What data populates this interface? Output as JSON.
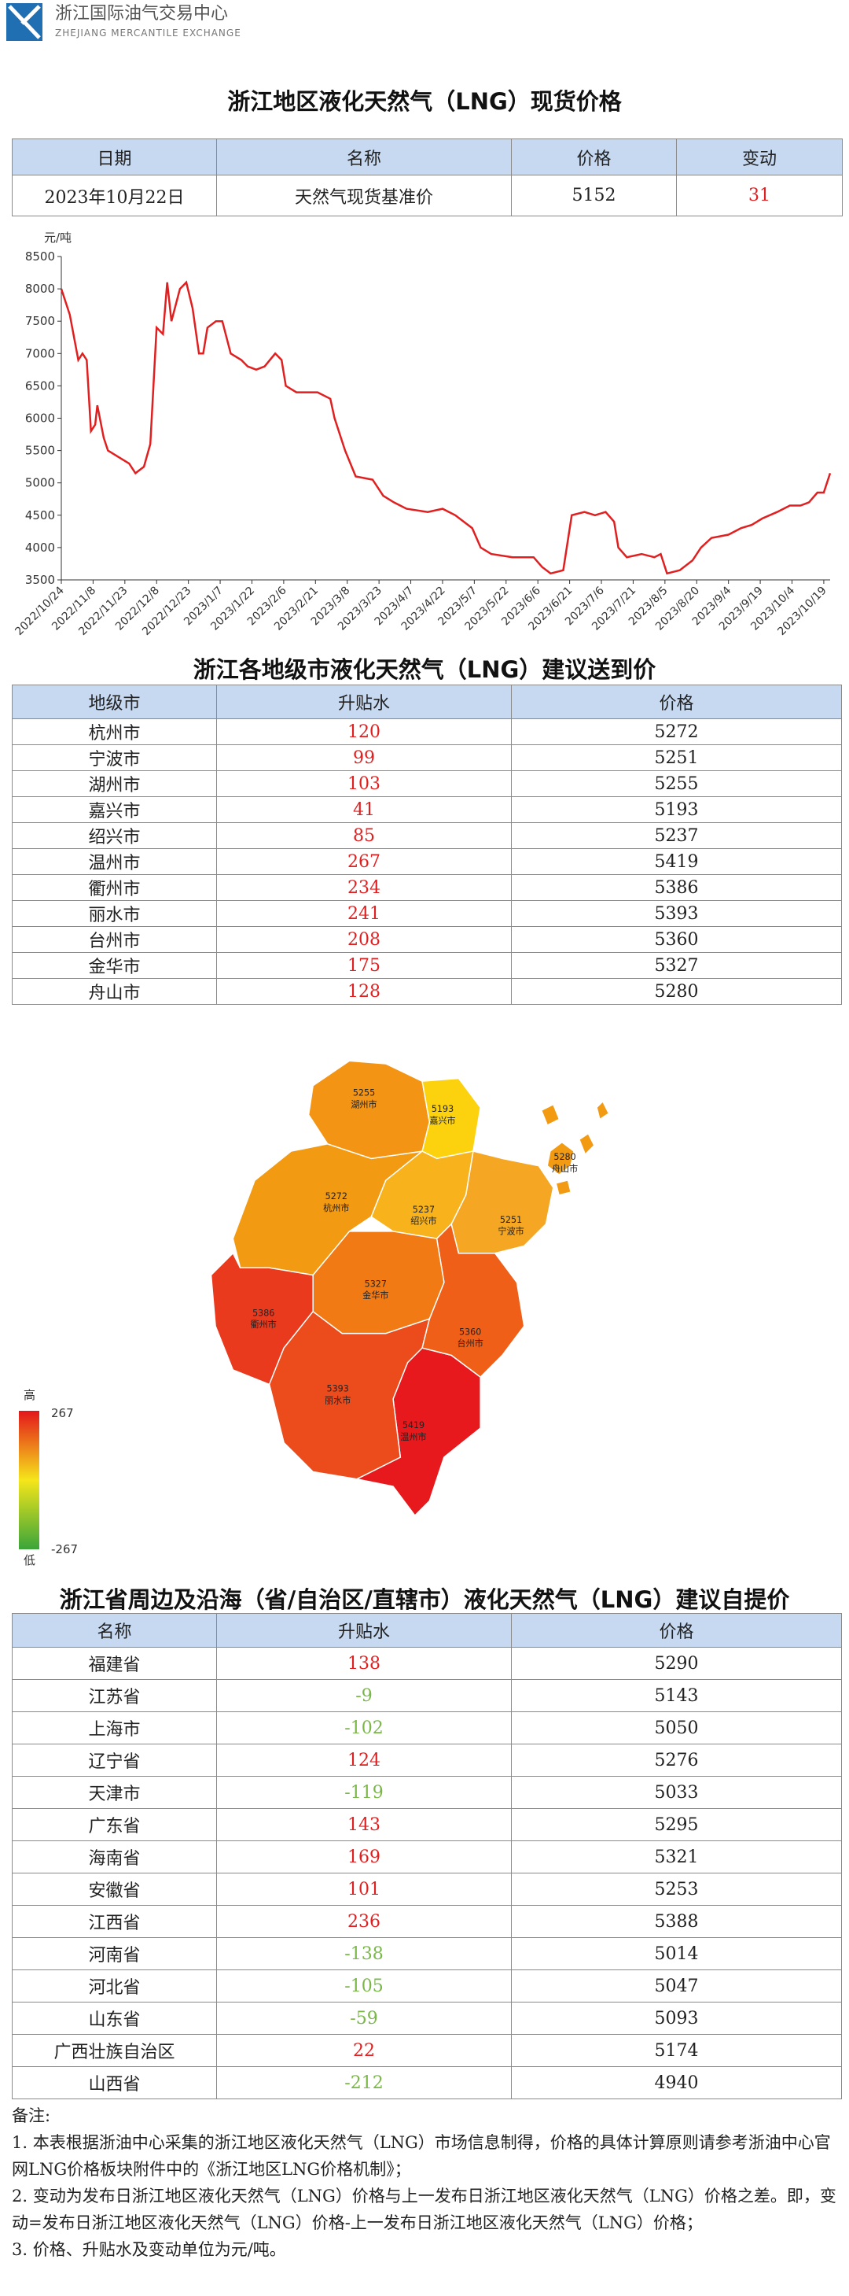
{
  "header": {
    "name": "浙江国际油气交易中心",
    "name_en": "ZHEJIANG MERCANTILE EXCHANGE"
  },
  "colors": {
    "positive": "#e02020",
    "negative": "#7ab648"
  },
  "spot": {
    "title": "浙江地区液化天然气（LNG）现货价格",
    "columns": [
      "日期",
      "名称",
      "价格",
      "变动"
    ],
    "rows": [
      [
        "2023年10月22日",
        "天然气现货基准价",
        5152,
        31
      ]
    ]
  },
  "chart_data": {
    "type": "line",
    "y_label": "元/吨",
    "x": [
      "2022/10/24",
      "2022/10/28",
      "2022/11/1",
      "2022/11/3",
      "2022/11/5",
      "2022/11/7",
      "2022/11/9",
      "2022/11/10",
      "2022/11/13",
      "2022/11/15",
      "2022/11/20",
      "2022/11/25",
      "2022/11/28",
      "2022/12/2",
      "2022/12/5",
      "2022/12/8",
      "2022/12/11",
      "2022/12/13",
      "2022/12/15",
      "2022/12/19",
      "2022/12/22",
      "2022/12/25",
      "2022/12/28",
      "2022/12/30",
      "2023/1/1",
      "2023/1/5",
      "2023/1/8",
      "2023/1/12",
      "2023/1/17",
      "2023/1/20",
      "2023/1/24",
      "2023/1/28",
      "2023/2/2",
      "2023/2/5",
      "2023/2/7",
      "2023/2/12",
      "2023/2/22",
      "2023/2/28",
      "2023/3/2",
      "2023/3/7",
      "2023/3/12",
      "2023/3/20",
      "2023/3/25",
      "2023/3/30",
      "2023/4/5",
      "2023/4/15",
      "2023/4/22",
      "2023/4/28",
      "2023/5/2",
      "2023/5/6",
      "2023/5/10",
      "2023/5/15",
      "2023/5/25",
      "2023/6/4",
      "2023/6/8",
      "2023/6/12",
      "2023/6/18",
      "2023/6/22",
      "2023/6/28",
      "2023/7/3",
      "2023/7/8",
      "2023/7/12",
      "2023/7/14",
      "2023/7/18",
      "2023/7/25",
      "2023/7/31",
      "2023/8/3",
      "2023/8/6",
      "2023/8/12",
      "2023/8/18",
      "2023/8/22",
      "2023/8/27",
      "2023/9/4",
      "2023/9/10",
      "2023/9/15",
      "2023/9/20",
      "2023/9/27",
      "2023/10/3",
      "2023/10/8",
      "2023/10/12",
      "2023/10/16",
      "2023/10/19",
      "2023/10/22"
    ],
    "series": [
      {
        "color": "#e02020",
        "values": [
          8000,
          7600,
          6900,
          7000,
          6900,
          5800,
          5900,
          6200,
          5700,
          5500,
          5400,
          5300,
          5150,
          5250,
          5600,
          7400,
          7300,
          8100,
          7500,
          8000,
          8100,
          7700,
          7000,
          7000,
          7400,
          7500,
          7500,
          7000,
          6900,
          6800,
          6750,
          6800,
          7000,
          6900,
          6500,
          6400,
          6400,
          6300,
          6000,
          5500,
          5100,
          5050,
          4800,
          4700,
          4600,
          4550,
          4600,
          4500,
          4400,
          4300,
          4000,
          3900,
          3850,
          3850,
          3700,
          3600,
          3650,
          4500,
          4550,
          4500,
          4550,
          4400,
          4000,
          3850,
          3900,
          3850,
          3900,
          3600,
          3650,
          3800,
          4000,
          4150,
          4200,
          4300,
          4350,
          4450,
          4550,
          4650,
          4650,
          4700,
          4850,
          4850,
          5150
        ]
      }
    ],
    "xlim": [
      "2022/10/24",
      "2023/10/22"
    ],
    "xticks": [
      "2022/10/24",
      "2022/11/8",
      "2022/11/23",
      "2022/12/8",
      "2022/12/23",
      "2023/1/7",
      "2023/1/22",
      "2023/2/6",
      "2023/2/21",
      "2023/3/8",
      "2023/3/23",
      "2023/4/7",
      "2023/4/22",
      "2023/5/7",
      "2023/5/22",
      "2023/6/6",
      "2023/6/21",
      "2023/7/6",
      "2023/7/21",
      "2023/8/5",
      "2023/8/20",
      "2023/9/4",
      "2023/9/19",
      "2023/10/4",
      "2023/10/19"
    ],
    "ylim": [
      3500,
      8500
    ],
    "yticks": [
      3500,
      4000,
      4500,
      5000,
      5500,
      6000,
      6500,
      7000,
      7500,
      8000,
      8500
    ],
    "grid": false
  },
  "cities": {
    "title": "浙江各地级市液化天然气（LNG）建议送到价",
    "columns": [
      "地级市",
      "升贴水",
      "价格"
    ],
    "rows": [
      [
        "杭州市",
        120,
        5272
      ],
      [
        "宁波市",
        99,
        5251
      ],
      [
        "湖州市",
        103,
        5255
      ],
      [
        "嘉兴市",
        41,
        5193
      ],
      [
        "绍兴市",
        85,
        5237
      ],
      [
        "温州市",
        267,
        5419
      ],
      [
        "衢州市",
        234,
        5386
      ],
      [
        "丽水市",
        241,
        5393
      ],
      [
        "台州市",
        208,
        5360
      ],
      [
        "金华市",
        175,
        5327
      ],
      [
        "舟山市",
        128,
        5280
      ]
    ]
  },
  "map_colors": [
    "#f29a12",
    "#f5a623",
    "#f39414",
    "#fcd20e",
    "#f7b21c",
    "#e7191c",
    "#e93a1e",
    "#ec4b1c",
    "#ef5f18",
    "#f27a14",
    "#f29a12"
  ],
  "map_legend": {
    "high": "高",
    "low": "低",
    "max": 267,
    "min": -267
  },
  "provinces": {
    "title": "浙江省周边及沿海（省/自治区/直辖市）液化天然气（LNG）建议自提价",
    "columns": [
      "名称",
      "升贴水",
      "价格"
    ],
    "rows": [
      [
        "福建省",
        138,
        5290
      ],
      [
        "江苏省",
        -9,
        5143
      ],
      [
        "上海市",
        -102,
        5050
      ],
      [
        "辽宁省",
        124,
        5276
      ],
      [
        "天津市",
        -119,
        5033
      ],
      [
        "广东省",
        143,
        5295
      ],
      [
        "海南省",
        169,
        5321
      ],
      [
        "安徽省",
        101,
        5253
      ],
      [
        "江西省",
        236,
        5388
      ],
      [
        "河南省",
        -138,
        5014
      ],
      [
        "河北省",
        -105,
        5047
      ],
      [
        "山东省",
        -59,
        5093
      ],
      [
        "广西壮族自治区",
        22,
        5174
      ],
      [
        "山西省",
        -212,
        4940
      ]
    ]
  },
  "notes": {
    "heading": "备注:",
    "items": [
      "1. 本表根据浙油中心采集的浙江地区液化天然气（LNG）市场信息制得，价格的具体计算原则请参考浙油中心官网LNG价格板块附件中的《浙江地区LNG价格机制》；",
      "2. 变动为发布日浙江地区液化天然气（LNG）价格与上一发布日浙江地区液化天然气（LNG）价格之差。即，变动=发布日浙江地区液化天然气（LNG）价格-上一发布日浙江地区液化天然气（LNG）价格；",
      "3. 价格、升贴水及变动单位为元/吨。"
    ]
  }
}
